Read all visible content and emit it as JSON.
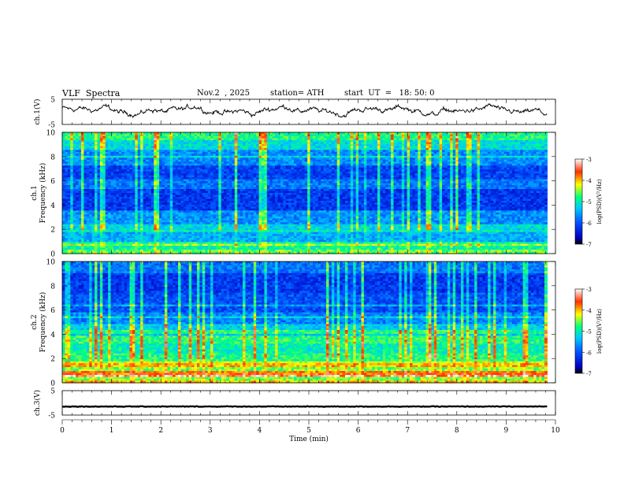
{
  "header": {
    "title": "VLF  Spectra",
    "date": "Nov.2  , 2025",
    "station": "station= ATH",
    "start_ut": "start  UT  =   18: 50: 0"
  },
  "chart_data": [
    {
      "type": "line",
      "panel": "ch1-waveform",
      "ylabel": "ch.1(V)",
      "ylim": [
        -5,
        5
      ],
      "yticks": [
        5,
        -5
      ],
      "xlim": [
        0,
        10
      ],
      "x_extent_min": 9.83
    },
    {
      "type": "heatmap",
      "panel": "ch1-spectrogram",
      "ylabel": [
        "ch.1",
        "Frequency  (kHz)"
      ],
      "ylim": [
        0,
        10
      ],
      "yticks": [
        0,
        2,
        4,
        6,
        8,
        10
      ],
      "xlim": [
        0,
        10
      ],
      "x_extent_min": 9.83,
      "colorbar": {
        "label": "log(PSD)(V²/Hz)",
        "range": [
          -7,
          -3
        ],
        "ticks": [
          "-3",
          "-4",
          "-5",
          "-6",
          "-7"
        ],
        "colors": [
          "#000000",
          "#0000c0",
          "#0050ff",
          "#00c8ff",
          "#00ff80",
          "#ffff00",
          "#ff3000",
          "#ffffff"
        ]
      }
    },
    {
      "type": "heatmap",
      "panel": "ch2-spectrogram",
      "ylabel": [
        "ch.2",
        "Frequency  (kHz)"
      ],
      "ylim": [
        0,
        10
      ],
      "yticks": [
        0,
        2,
        4,
        6,
        8,
        10
      ],
      "xlim": [
        0,
        10
      ],
      "x_extent_min": 9.83,
      "colorbar": {
        "label": "log(PSD)(V²/Hz)",
        "range": [
          -7,
          -3
        ],
        "ticks": [
          "-3",
          "-4",
          "-5",
          "-6",
          "-7"
        ],
        "colors": [
          "#000000",
          "#0000c0",
          "#0050ff",
          "#00c8ff",
          "#00ff80",
          "#ffff00",
          "#ff3000",
          "#ffffff"
        ]
      }
    },
    {
      "type": "line",
      "panel": "ch3-waveform",
      "ylabel": "ch.3(V)",
      "ylim": [
        -5,
        5
      ],
      "yticks": [
        5,
        -5
      ],
      "xlim": [
        0,
        10
      ],
      "xticks": [
        "0",
        "1",
        "2",
        "3",
        "4",
        "5",
        "6",
        "7",
        "8",
        "9",
        "10"
      ],
      "xlabel": "Time  (min)",
      "x_extent_min": 9.83,
      "level": -1.5
    }
  ]
}
